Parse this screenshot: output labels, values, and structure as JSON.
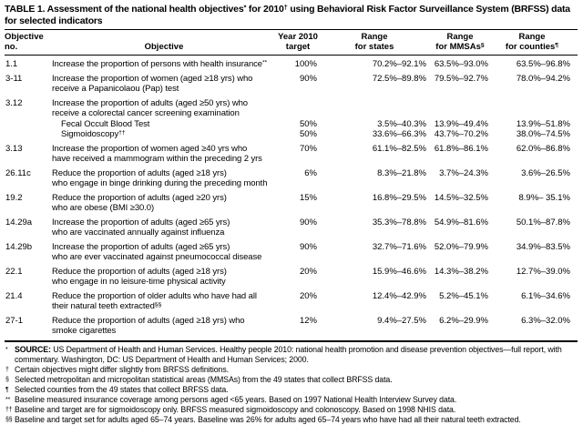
{
  "page": {
    "background": "#ffffff",
    "text_color": "#000000"
  },
  "table": {
    "title": "TABLE 1. Assessment of the national health objectives^{*} for 2010^{†} using Behavioral Risk Factor Surveillance System (BRFSS) data for selected indicators",
    "columns": [
      {
        "key": "objective-no",
        "label": "Objective no."
      },
      {
        "key": "objective",
        "label": "Objective"
      },
      {
        "key": "target",
        "label": "Year 2010\ntarget"
      },
      {
        "key": "range-states",
        "label": "Range\nfor states"
      },
      {
        "key": "range-mmsas",
        "label": "Range\nfor MMSAs^{§}"
      },
      {
        "key": "range-counties",
        "label": "Range\nfor counties^{¶}"
      }
    ],
    "rows": [
      {
        "no": "1.1",
        "objective": "Increase the proportion of persons with health insurance^{**}",
        "target": "100%",
        "states": "70.2%–92.1%",
        "mmsas": "63.5%–93.0%",
        "counties": "63.5%–96.8%"
      },
      {
        "no": "3-11",
        "objective": "Increase the proportion of women (aged ≥18 yrs) who\nreceive a Papanicolaou (Pap) test",
        "target": "90%",
        "states": "72.5%–89.8%",
        "mmsas": "79.5%–92.7%",
        "counties": "78.0%–94.2%"
      },
      {
        "no": "3.12",
        "objective": "Increase the proportion of adults (aged ≥50 yrs) who\nreceive a colorectal cancer screening examination",
        "target": "",
        "states": "",
        "mmsas": "",
        "counties": "",
        "sub_rows": [
          {
            "label": "Fecal Occult Blood Test",
            "target": "50%",
            "states": "3.5%–40.3%",
            "mmsas": "13.9%–49.4%",
            "counties": "13.9%–51.8%"
          },
          {
            "label": "Sigmoidoscopy^{††}",
            "target": "50%",
            "states": "33.6%–66.3%",
            "mmsas": "43.7%–70.2%",
            "counties": "38.0%–74.5%"
          }
        ]
      },
      {
        "no": "3.13",
        "objective": "Increase the proportion of women aged ≥40 yrs who\nhave received a mammogram within the preceding 2 yrs",
        "target": "70%",
        "states": "61.1%–82.5%",
        "mmsas": "61.8%–86.1%",
        "counties": "62.0%–86.8%"
      },
      {
        "no": "26.11c",
        "objective": "Reduce the proportion of adults (aged ≥18 yrs)\nwho engage in binge drinking during the preceding month",
        "target": "6%",
        "states": "8.3%–21.8%",
        "mmsas": "3.7%–24.3%",
        "counties": "3.6%–26.5%"
      },
      {
        "no": "19.2",
        "objective": "Reduce the proportion of adults (aged ≥20 yrs)\nwho are obese (BMI ≥30.0)",
        "target": "15%",
        "states": "16.8%–29.5%",
        "mmsas": "14.5%–32.5%",
        "counties": "8.9%– 35.1%"
      },
      {
        "no": "14.29a",
        "objective": "Increase the proportion of adults (aged ≥65 yrs)\nwho are vaccinated annually against influenza",
        "target": "90%",
        "states": "35.3%–78.8%",
        "mmsas": "54.9%–81.6%",
        "counties": "50.1%–87.8%"
      },
      {
        "no": "14.29b",
        "objective": "Increase the proportion of adults (aged ≥65 yrs)\nwho are ever vaccinated against pneumococcal disease",
        "target": "90%",
        "states": "32.7%–71.6%",
        "mmsas": "52.0%–79.9%",
        "counties": "34.9%–83.5%"
      },
      {
        "no": "22.1",
        "objective": "Reduce the proportion of adults (aged ≥18 yrs)\nwho engage in no leisure-time physical activity",
        "target": "20%",
        "states": "15.9%–46.6%",
        "mmsas": "14.3%–38.2%",
        "counties": "12.7%–39.0%"
      },
      {
        "no": "21.4",
        "objective": "Reduce the proportion of older adults who have had all\ntheir natural teeth extracted^{§§}",
        "target": "20%",
        "states": "12.4%–42.9%",
        "mmsas": "5.2%–45.1%",
        "counties": "6.1%–34.6%"
      },
      {
        "no": "27-1",
        "objective": "Reduce the proportion of adults (aged ≥18 yrs) who\nsmoke cigarettes",
        "target": "12%",
        "states": "9.4%–27.5%",
        "mmsas": "6.2%–29.9%",
        "counties": "6.3%–32.0%"
      }
    ],
    "footnotes": [
      {
        "marker": "*",
        "bold": "SOURCE:",
        "text": " US Department of Health and Human Services. Healthy people 2010: national health promotion and disease prevention objectives—full report, with commentary. Washington, DC: US Department of Health and Human Services; 2000."
      },
      {
        "marker": "†",
        "bold": "",
        "text": "Certain objectives might differ slightly from BRFSS definitions."
      },
      {
        "marker": "§",
        "bold": "",
        "text": "Selected metropolitan and micropolitan statistical areas (MMSAs) from the 49 states that collect BRFSS data."
      },
      {
        "marker": "¶",
        "bold": "",
        "text": "Selected counties from the 49 states that collect BRFSS data."
      },
      {
        "marker": "**",
        "bold": "",
        "text": "Baseline measured insurance coverage among persons aged <65 years. Based on 1997 National Health Interview Survey data."
      },
      {
        "marker": "††",
        "bold": "",
        "text": "Baseline and target are for sigmoidoscopy only. BRFSS measured sigmoidoscopy and colonoscopy. Based on 1998 NHIS data."
      },
      {
        "marker": "§§",
        "bold": "",
        "text": "Baseline and target set for adults aged 65–74 years. Baseline was 26% for adults aged 65–74 years who have had all their natural teeth extracted."
      }
    ]
  }
}
